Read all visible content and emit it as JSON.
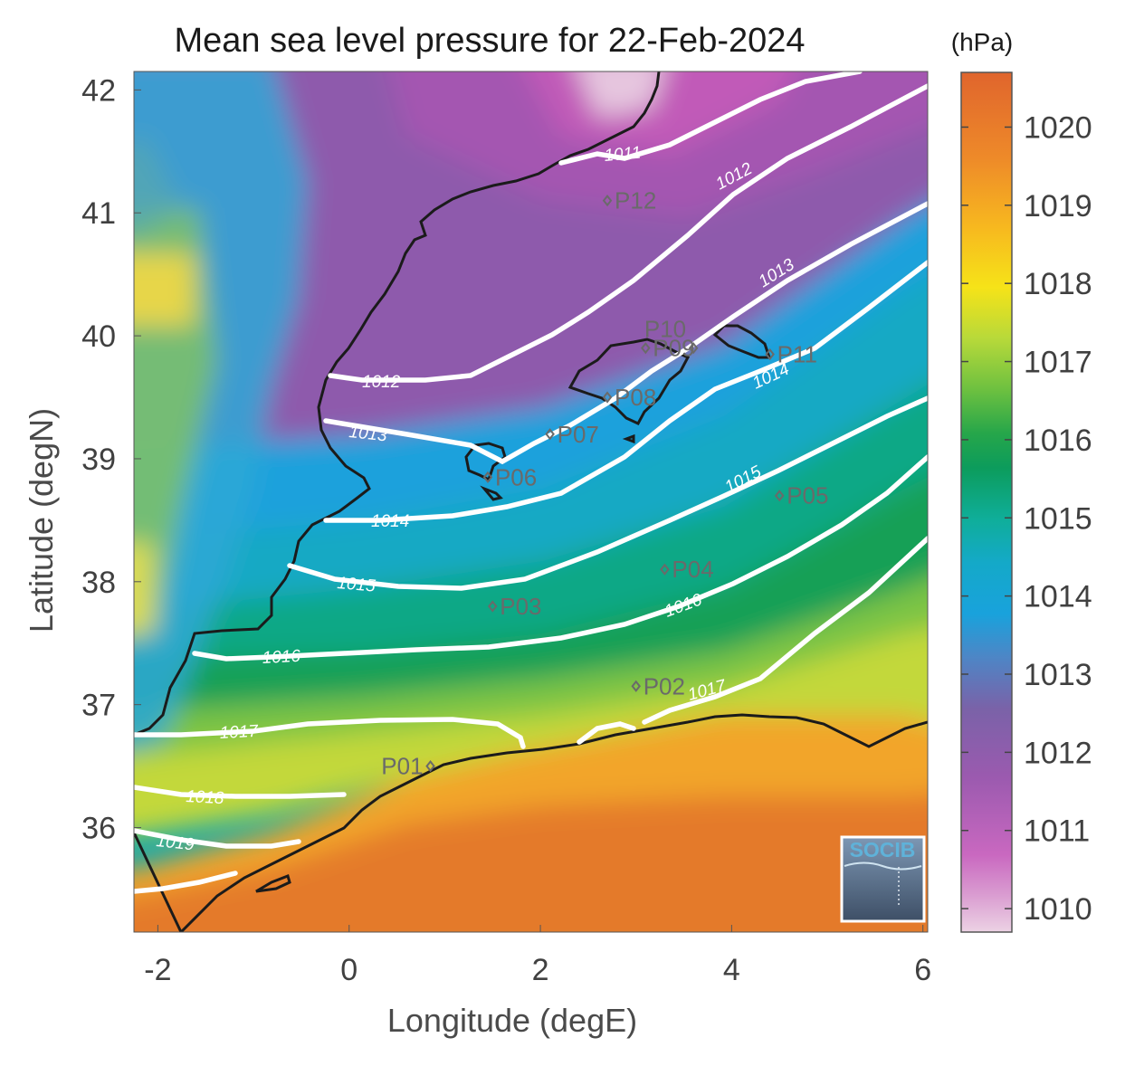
{
  "title": "Mean sea level pressure for 22-Feb-2024",
  "xlabel": "Longitude (degE)",
  "ylabel": "Latitude (degN)",
  "x_ticks": [
    "-2",
    "0",
    "2",
    "4",
    "6"
  ],
  "y_ticks": [
    "36",
    "37",
    "38",
    "39",
    "40",
    "41",
    "42"
  ],
  "colorbar": {
    "unit": "(hPa)",
    "ticks": [
      "1010",
      "1011",
      "1012",
      "1013",
      "1014",
      "1015",
      "1016",
      "1017",
      "1018",
      "1019",
      "1020"
    ]
  },
  "logo": "SOCIB",
  "points": [
    {
      "label": "P01",
      "lon": 0.85,
      "lat": 36.5
    },
    {
      "label": "P02",
      "lon": 3.0,
      "lat": 37.15
    },
    {
      "label": "P03",
      "lon": 1.5,
      "lat": 37.8
    },
    {
      "label": "P04",
      "lon": 3.3,
      "lat": 38.1
    },
    {
      "label": "P05",
      "lon": 4.5,
      "lat": 38.7
    },
    {
      "label": "P06",
      "lon": 1.45,
      "lat": 38.85
    },
    {
      "label": "P07",
      "lon": 2.1,
      "lat": 39.2
    },
    {
      "label": "P08",
      "lon": 2.7,
      "lat": 39.5
    },
    {
      "label": "P09",
      "lon": 3.1,
      "lat": 39.9
    },
    {
      "label": "P10",
      "lon": 3.6,
      "lat": 39.9
    },
    {
      "label": "P11",
      "lon": 4.4,
      "lat": 39.85
    },
    {
      "label": "P12",
      "lon": 2.7,
      "lat": 41.1
    }
  ],
  "contour_labels": [
    "1011",
    "1012",
    "1012",
    "1013",
    "1013",
    "1014",
    "1014",
    "1015",
    "1015",
    "1016",
    "1016",
    "1017",
    "1017",
    "1018",
    "1019"
  ],
  "chart_data": {
    "type": "heatmap",
    "title": "Mean sea level pressure for 22-Feb-2024",
    "xlabel": "Longitude (degE)",
    "ylabel": "Latitude (degN)",
    "xlim": [
      -2.25,
      6.05
    ],
    "ylim": [
      35.15,
      42.15
    ],
    "colorbar_range": [
      1009.7,
      1020.7
    ],
    "colorbar_unit": "hPa",
    "contour_levels": [
      1011,
      1012,
      1013,
      1014,
      1015,
      1016,
      1017,
      1018,
      1019
    ]
  }
}
